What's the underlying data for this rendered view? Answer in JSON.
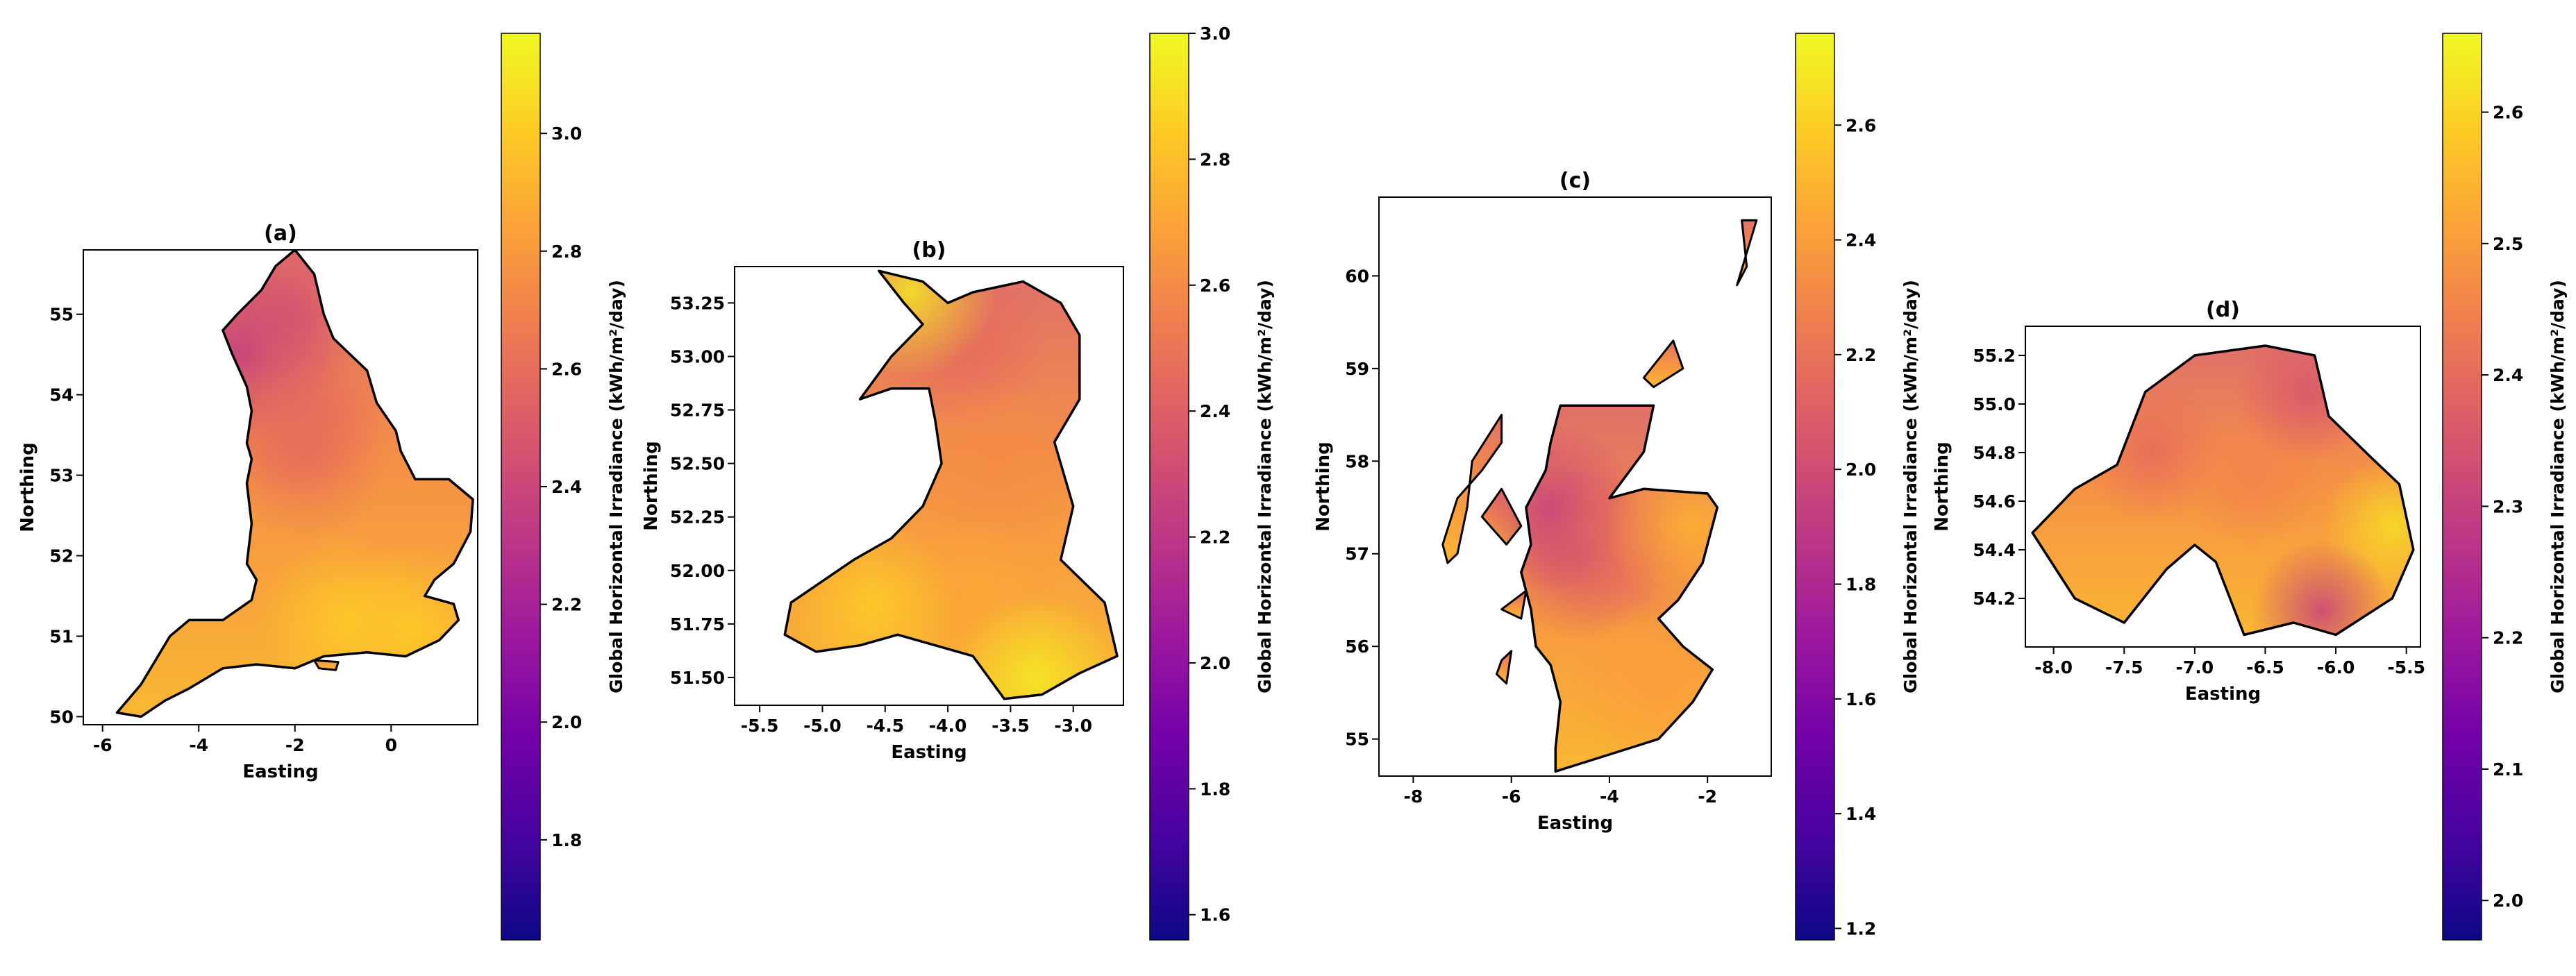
{
  "colormap": {
    "name": "plasma",
    "stops": [
      "#0d0887",
      "#46039f",
      "#7201a8",
      "#9c179e",
      "#bd3786",
      "#d8576b",
      "#ed7953",
      "#fb9f3a",
      "#fdca26",
      "#f0f921"
    ]
  },
  "map_colors": {
    "coast": "#000000",
    "fill_low": "#e0706a",
    "fill_mid": "#f59046",
    "fill_high": "#fbb733"
  },
  "chart_data": [
    {
      "type": "heatmap",
      "title": "(a)",
      "region": "England",
      "xlabel": "Easting",
      "ylabel": "Northing",
      "xlim": [
        -6.4,
        1.8
      ],
      "ylim": [
        49.9,
        55.8
      ],
      "xticks": [
        -6,
        -4,
        -2,
        0
      ],
      "yticks": [
        50,
        51,
        52,
        53,
        54,
        55
      ],
      "colorbar": {
        "label": "Global Horizontal Irradiance (kWh/m²/day)",
        "vmin": 1.63,
        "vmax": 3.17,
        "ticks": [
          1.8,
          2.0,
          2.2,
          2.4,
          2.6,
          2.8,
          3.0
        ]
      },
      "outline": [
        [
          -5.7,
          50.05
        ],
        [
          -5.2,
          50.0
        ],
        [
          -4.7,
          50.2
        ],
        [
          -4.2,
          50.35
        ],
        [
          -3.5,
          50.6
        ],
        [
          -2.8,
          50.65
        ],
        [
          -2.0,
          50.6
        ],
        [
          -1.4,
          50.75
        ],
        [
          -0.5,
          50.8
        ],
        [
          0.3,
          50.75
        ],
        [
          1.0,
          50.95
        ],
        [
          1.4,
          51.2
        ],
        [
          1.3,
          51.4
        ],
        [
          0.7,
          51.5
        ],
        [
          0.9,
          51.7
        ],
        [
          1.3,
          51.9
        ],
        [
          1.65,
          52.3
        ],
        [
          1.7,
          52.7
        ],
        [
          1.2,
          52.95
        ],
        [
          0.5,
          52.95
        ],
        [
          0.2,
          53.3
        ],
        [
          0.1,
          53.55
        ],
        [
          -0.3,
          53.9
        ],
        [
          -0.5,
          54.3
        ],
        [
          -1.2,
          54.7
        ],
        [
          -1.4,
          55.0
        ],
        [
          -1.6,
          55.5
        ],
        [
          -2.0,
          55.8
        ],
        [
          -2.4,
          55.6
        ],
        [
          -2.7,
          55.3
        ],
        [
          -3.2,
          55.0
        ],
        [
          -3.5,
          54.8
        ],
        [
          -3.3,
          54.5
        ],
        [
          -3.0,
          54.1
        ],
        [
          -2.9,
          53.8
        ],
        [
          -3.0,
          53.4
        ],
        [
          -2.9,
          53.2
        ],
        [
          -3.0,
          52.9
        ],
        [
          -2.9,
          52.4
        ],
        [
          -3.0,
          51.9
        ],
        [
          -2.8,
          51.7
        ],
        [
          -2.9,
          51.45
        ],
        [
          -3.5,
          51.2
        ],
        [
          -4.2,
          51.2
        ],
        [
          -4.6,
          51.0
        ],
        [
          -4.9,
          50.7
        ],
        [
          -5.2,
          50.4
        ],
        [
          -5.7,
          50.05
        ]
      ],
      "islands": [
        [
          [
            -1.6,
            50.7
          ],
          [
            -1.1,
            50.68
          ],
          [
            -1.15,
            50.58
          ],
          [
            -1.5,
            50.6
          ],
          [
            -1.6,
            50.7
          ]
        ]
      ],
      "spots": [
        {
          "lon": -3.0,
          "lat": 54.5,
          "value": 2.3
        },
        {
          "lon": -2.2,
          "lat": 55.0,
          "value": 2.45
        },
        {
          "lon": -2.0,
          "lat": 53.8,
          "value": 2.55
        },
        {
          "lon": -1.8,
          "lat": 53.3,
          "value": 2.6
        },
        {
          "lon": -1.0,
          "lat": 51.2,
          "value": 3.0
        },
        {
          "lon": 0.5,
          "lat": 51.1,
          "value": 3.0
        }
      ]
    },
    {
      "type": "heatmap",
      "title": "(b)",
      "region": "Wales",
      "xlabel": "Easting",
      "ylabel": "Northing",
      "xlim": [
        -5.7,
        -2.6
      ],
      "ylim": [
        51.37,
        53.42
      ],
      "xticks": [
        -5.5,
        -5.0,
        -4.5,
        -4.0,
        -3.5,
        -3.0
      ],
      "xticklabels": [
        "-5.5",
        "-5.0",
        "-4.5",
        "-4.0",
        "-3.5",
        "-3.0"
      ],
      "yticks": [
        51.5,
        51.75,
        52.0,
        52.25,
        52.5,
        52.75,
        53.0,
        53.25
      ],
      "yticklabels": [
        "51.50",
        "51.75",
        "52.00",
        "52.25",
        "52.50",
        "52.75",
        "53.00",
        "53.25"
      ],
      "colorbar": {
        "label": "Global Horizontal Irradiance (kWh/m²/day)",
        "vmin": 1.56,
        "vmax": 3.0,
        "ticks": [
          1.6,
          1.8,
          2.0,
          2.2,
          2.4,
          2.6,
          2.8,
          3.0
        ]
      },
      "outline": [
        [
          -5.25,
          51.85
        ],
        [
          -5.0,
          51.95
        ],
        [
          -4.75,
          52.05
        ],
        [
          -4.45,
          52.15
        ],
        [
          -4.2,
          52.3
        ],
        [
          -4.05,
          52.5
        ],
        [
          -4.1,
          52.7
        ],
        [
          -4.15,
          52.85
        ],
        [
          -4.45,
          52.85
        ],
        [
          -4.7,
          52.8
        ],
        [
          -4.45,
          53.0
        ],
        [
          -4.2,
          53.15
        ],
        [
          -4.35,
          53.25
        ],
        [
          -4.55,
          53.4
        ],
        [
          -4.2,
          53.35
        ],
        [
          -4.0,
          53.25
        ],
        [
          -3.8,
          53.3
        ],
        [
          -3.4,
          53.35
        ],
        [
          -3.1,
          53.25
        ],
        [
          -2.95,
          53.1
        ],
        [
          -2.95,
          52.8
        ],
        [
          -3.15,
          52.6
        ],
        [
          -3.0,
          52.3
        ],
        [
          -3.1,
          52.05
        ],
        [
          -2.75,
          51.85
        ],
        [
          -2.65,
          51.6
        ],
        [
          -2.95,
          51.52
        ],
        [
          -3.25,
          51.42
        ],
        [
          -3.55,
          51.4
        ],
        [
          -3.8,
          51.6
        ],
        [
          -4.1,
          51.65
        ],
        [
          -4.4,
          51.7
        ],
        [
          -4.7,
          51.65
        ],
        [
          -5.05,
          51.62
        ],
        [
          -5.3,
          51.7
        ],
        [
          -5.25,
          51.85
        ]
      ],
      "islands": [],
      "spots": [
        {
          "lon": -3.9,
          "lat": 53.05,
          "value": 2.45
        },
        {
          "lon": -3.6,
          "lat": 52.5,
          "value": 2.6
        },
        {
          "lon": -3.8,
          "lat": 51.85,
          "value": 2.7
        },
        {
          "lon": -4.6,
          "lat": 51.85,
          "value": 2.85
        },
        {
          "lon": -4.3,
          "lat": 53.3,
          "value": 2.95
        },
        {
          "lon": -3.3,
          "lat": 51.5,
          "value": 2.95
        }
      ]
    },
    {
      "type": "heatmap",
      "title": "(c)",
      "region": "Scotland",
      "xlabel": "Easting",
      "ylabel": "Northing",
      "xlim": [
        -8.7,
        -0.7
      ],
      "ylim": [
        54.6,
        60.85
      ],
      "xticks": [
        -8,
        -6,
        -4,
        -2
      ],
      "yticks": [
        55,
        56,
        57,
        58,
        59,
        60
      ],
      "colorbar": {
        "label": "Global Horizontal Irradiance (kWh/m²/day)",
        "vmin": 1.18,
        "vmax": 2.76,
        "ticks": [
          1.2,
          1.4,
          1.6,
          1.8,
          2.0,
          2.2,
          2.4,
          2.6
        ]
      },
      "outline": [
        [
          -5.1,
          54.65
        ],
        [
          -4.5,
          54.75
        ],
        [
          -3.6,
          54.9
        ],
        [
          -3.0,
          55.0
        ],
        [
          -2.3,
          55.4
        ],
        [
          -1.9,
          55.75
        ],
        [
          -2.5,
          56.0
        ],
        [
          -3.0,
          56.3
        ],
        [
          -2.6,
          56.5
        ],
        [
          -2.1,
          56.9
        ],
        [
          -1.8,
          57.5
        ],
        [
          -2.0,
          57.65
        ],
        [
          -3.3,
          57.7
        ],
        [
          -4.0,
          57.6
        ],
        [
          -3.3,
          58.1
        ],
        [
          -3.1,
          58.6
        ],
        [
          -4.4,
          58.6
        ],
        [
          -5.0,
          58.6
        ],
        [
          -5.2,
          58.2
        ],
        [
          -5.3,
          57.9
        ],
        [
          -5.7,
          57.5
        ],
        [
          -5.6,
          57.1
        ],
        [
          -5.8,
          56.8
        ],
        [
          -5.6,
          56.4
        ],
        [
          -5.5,
          56.0
        ],
        [
          -5.2,
          55.8
        ],
        [
          -5.0,
          55.4
        ],
        [
          -5.1,
          54.9
        ],
        [
          -5.1,
          54.65
        ]
      ],
      "islands": [
        [
          [
            -6.8,
            58.0
          ],
          [
            -6.2,
            58.5
          ],
          [
            -6.2,
            58.2
          ],
          [
            -6.6,
            57.9
          ],
          [
            -7.1,
            57.6
          ],
          [
            -7.4,
            57.1
          ],
          [
            -7.3,
            56.9
          ],
          [
            -7.1,
            57.0
          ],
          [
            -6.9,
            57.5
          ],
          [
            -6.8,
            58.0
          ]
        ],
        [
          [
            -6.6,
            57.4
          ],
          [
            -6.2,
            57.7
          ],
          [
            -5.8,
            57.3
          ],
          [
            -6.1,
            57.1
          ],
          [
            -6.6,
            57.4
          ]
        ],
        [
          [
            -6.2,
            56.4
          ],
          [
            -5.7,
            56.6
          ],
          [
            -5.8,
            56.3
          ],
          [
            -6.2,
            56.4
          ]
        ],
        [
          [
            -6.2,
            55.85
          ],
          [
            -6.0,
            55.95
          ],
          [
            -6.1,
            55.6
          ],
          [
            -6.3,
            55.7
          ],
          [
            -6.2,
            55.85
          ]
        ],
        [
          [
            -3.3,
            58.9
          ],
          [
            -2.7,
            59.3
          ],
          [
            -2.5,
            59.0
          ],
          [
            -3.1,
            58.8
          ],
          [
            -3.3,
            58.9
          ]
        ],
        [
          [
            -1.4,
            59.9
          ],
          [
            -1.0,
            60.6
          ],
          [
            -1.3,
            60.6
          ],
          [
            -1.2,
            60.1
          ],
          [
            -1.4,
            59.9
          ]
        ]
      ],
      "spots": [
        {
          "lon": -4.5,
          "lat": 57.0,
          "value": 2.0
        },
        {
          "lon": -5.2,
          "lat": 57.5,
          "value": 1.95
        },
        {
          "lon": -3.5,
          "lat": 57.1,
          "value": 2.2
        },
        {
          "lon": -3.0,
          "lat": 55.6,
          "value": 2.4
        },
        {
          "lon": -2.3,
          "lat": 57.3,
          "value": 2.5
        }
      ]
    },
    {
      "type": "heatmap",
      "title": "(d)",
      "region": "Northern Ireland",
      "xlabel": "Easting",
      "ylabel": "Northing",
      "xlim": [
        -8.2,
        -5.4
      ],
      "ylim": [
        54.0,
        55.32
      ],
      "xticks": [
        -8.0,
        -7.5,
        -7.0,
        -6.5,
        -6.0,
        -5.5
      ],
      "xticklabels": [
        "-8.0",
        "-7.5",
        "-7.0",
        "-6.5",
        "-6.0",
        "-5.5"
      ],
      "yticks": [
        54.2,
        54.4,
        54.6,
        54.8,
        55.0,
        55.2
      ],
      "yticklabels": [
        "54.2",
        "54.4",
        "54.6",
        "54.8",
        "55.0",
        "55.2"
      ],
      "colorbar": {
        "label": "Global Horizontal Irradiance (kWh/m²/day)",
        "vmin": 1.97,
        "vmax": 2.66,
        "ticks": [
          2.0,
          2.1,
          2.2,
          2.3,
          2.4,
          2.5,
          2.6
        ]
      },
      "outline": [
        [
          -8.15,
          54.47
        ],
        [
          -7.85,
          54.65
        ],
        [
          -7.55,
          54.75
        ],
        [
          -7.35,
          55.05
        ],
        [
          -7.0,
          55.2
        ],
        [
          -6.5,
          55.24
        ],
        [
          -6.15,
          55.2
        ],
        [
          -6.05,
          54.95
        ],
        [
          -5.75,
          54.78
        ],
        [
          -5.55,
          54.67
        ],
        [
          -5.45,
          54.4
        ],
        [
          -5.6,
          54.2
        ],
        [
          -6.0,
          54.05
        ],
        [
          -6.3,
          54.1
        ],
        [
          -6.65,
          54.05
        ],
        [
          -6.85,
          54.35
        ],
        [
          -7.0,
          54.42
        ],
        [
          -7.2,
          54.32
        ],
        [
          -7.5,
          54.1
        ],
        [
          -7.85,
          54.2
        ],
        [
          -8.15,
          54.47
        ]
      ],
      "islands": [],
      "spots": [
        {
          "lon": -7.3,
          "lat": 54.8,
          "value": 2.4
        },
        {
          "lon": -6.6,
          "lat": 54.7,
          "value": 2.45
        },
        {
          "lon": -6.2,
          "lat": 55.05,
          "value": 2.35
        },
        {
          "lon": -5.6,
          "lat": 54.5,
          "value": 2.62
        },
        {
          "lon": -6.1,
          "lat": 54.15,
          "value": 2.3
        }
      ]
    }
  ]
}
